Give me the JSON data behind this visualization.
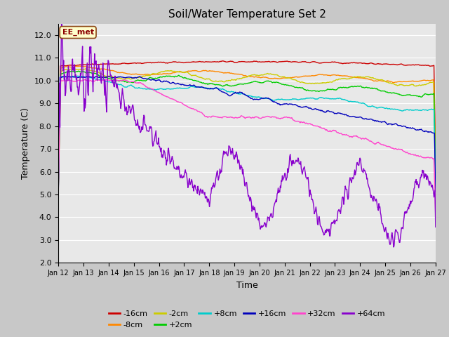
{
  "title": "Soil/Water Temperature Set 2",
  "xlabel": "Time",
  "ylabel": "Temperature (C)",
  "ylim": [
    2.0,
    12.5
  ],
  "yticks": [
    2.0,
    3.0,
    4.0,
    5.0,
    6.0,
    7.0,
    8.0,
    9.0,
    10.0,
    11.0,
    12.0
  ],
  "xtick_labels": [
    "Jan 12",
    "Jan 13",
    "Jan 14",
    "Jan 15",
    "Jan 16",
    "Jan 17",
    "Jan 18",
    "Jan 19",
    "Jan 20",
    "Jan 21",
    "Jan 22",
    "Jan 23",
    "Jan 24",
    "Jan 25",
    "Jan 26",
    "Jan 27"
  ],
  "fig_bg_color": "#c8c8c8",
  "plot_bg_color": "#e8e8e8",
  "grid_color": "#ffffff",
  "annotation_text": "EE_met",
  "annotation_bg": "#ffffcc",
  "annotation_border": "#8B4513",
  "colors": {
    "-16cm": "#cc0000",
    "-8cm": "#ff8800",
    "-2cm": "#cccc00",
    "+2cm": "#00cc00",
    "+8cm": "#00cccc",
    "+16cm": "#0000bb",
    "+32cm": "#ff44cc",
    "+64cm": "#8800cc"
  },
  "legend_order": [
    "-16cm",
    "-8cm",
    "-2cm",
    "+2cm",
    "+8cm",
    "+16cm",
    "+32cm",
    "+64cm"
  ]
}
